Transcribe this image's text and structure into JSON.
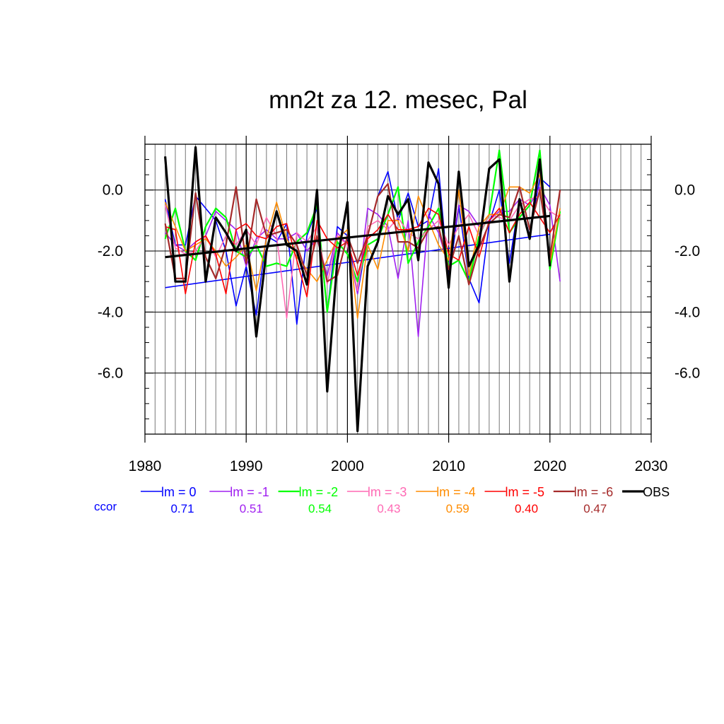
{
  "chart_data": {
    "type": "line",
    "title": "mn2t za 12. mesec, Pal",
    "xlim": [
      1980,
      2030
    ],
    "ylim": [
      -8.0,
      1.5
    ],
    "x_ticks": [
      "1980",
      "1990",
      "2000",
      "2010",
      "2020",
      "2030"
    ],
    "y_ticks": [
      "0.0",
      "-2.0",
      "-4.0",
      "-6.0"
    ],
    "y_tick_values": [
      0.0,
      -2.0,
      -4.0,
      -6.0
    ],
    "x_tick_values": [
      1980,
      1990,
      2000,
      2010,
      2020,
      2030
    ],
    "grid": "vertical yearly lines, horizontal at labeled ticks",
    "legend_placement": "bottom",
    "ccor_label": "ccor",
    "series": [
      {
        "name": "lm = 0",
        "color": "#0000ff",
        "width": 1.6,
        "ccor": "0.71",
        "x_start": 1982,
        "values": [
          -0.3,
          -1.8,
          -1.8,
          -0.2,
          -0.6,
          -1.0,
          -2.0,
          -3.8,
          -2.5,
          -4.1,
          -1.5,
          -1.7,
          -1.1,
          -4.4,
          -1.5,
          -0.6,
          -4.0,
          -1.2,
          -1.5,
          -3.4,
          -1.5,
          -0.2,
          0.6,
          -1.0,
          -0.1,
          -1.2,
          -1.0,
          0.7,
          -3.0,
          -0.5,
          -2.9,
          -3.7,
          -1.1,
          0.0,
          -2.4,
          -0.3,
          -1.5,
          0.4,
          0.1
        ],
        "trend": [
          [
            1982,
            -3.2
          ],
          [
            2020,
            -1.45
          ]
        ]
      },
      {
        "name": "lm = -1",
        "color": "#a020f0",
        "width": 1.6,
        "ccor": "0.51",
        "x_start": 1982,
        "values": [
          -1.4,
          -1.8,
          -2.0,
          -1.7,
          -1.5,
          -0.7,
          -1.0,
          -1.3,
          -2.5,
          -1.6,
          -1.3,
          -1.6,
          -1.6,
          -1.4,
          -2.0,
          -1.6,
          -2.8,
          -1.4,
          -1.8,
          -3.4,
          -0.6,
          -0.8,
          -1.2,
          -2.9,
          -1.0,
          -4.8,
          -0.8,
          -1.4,
          -2.5,
          -0.5,
          -0.7,
          -1.2,
          -1.0,
          -0.7,
          -0.7,
          -0.3,
          -0.5,
          0.1,
          -0.5,
          -3.0
        ]
      },
      {
        "name": "lm = -2",
        "color": "#00ff00",
        "width": 2.2,
        "ccor": "0.54",
        "x_start": 1982,
        "values": [
          -1.6,
          -0.6,
          -2.0,
          -2.3,
          -1.2,
          -0.6,
          -0.9,
          -2.0,
          -2.2,
          -1.8,
          -2.5,
          -2.4,
          -2.5,
          -1.7,
          -1.4,
          -0.5,
          -4.0,
          -1.7,
          -2.1,
          -3.0,
          -1.8,
          -1.6,
          -0.8,
          0.1,
          -2.4,
          -1.7,
          -1.2,
          -0.6,
          -2.5,
          -2.3,
          -3.0,
          -1.5,
          -0.8,
          1.3,
          -1.4,
          -0.9,
          -0.5,
          1.3,
          -2.6,
          -0.7
        ]
      },
      {
        "name": "lm = -3",
        "color": "#ff69b4",
        "width": 1.6,
        "ccor": "0.43",
        "x_start": 1982,
        "values": [
          -0.5,
          -1.9,
          -2.1,
          -2.0,
          -1.5,
          -2.2,
          -1.5,
          -1.8,
          -1.3,
          -1.8,
          -0.9,
          -1.5,
          -4.2,
          -1.4,
          -1.7,
          -1.2,
          -3.1,
          -1.5,
          -1.8,
          -3.3,
          -1.2,
          -1.0,
          -1.3,
          -0.9,
          -1.4,
          -1.6,
          -1.3,
          -1.0,
          -1.8,
          -1.2,
          -0.8,
          -1.5,
          -0.8,
          -0.9,
          -1.0,
          -0.5,
          -0.3,
          -0.2,
          -0.7,
          -0.9
        ]
      },
      {
        "name": "lm = -4",
        "color": "#ff8c00",
        "width": 1.6,
        "ccor": "0.59",
        "x_start": 1982,
        "values": [
          -0.4,
          -1.2,
          -2.0,
          -1.8,
          -1.6,
          -2.0,
          -2.5,
          -2.2,
          -1.8,
          -3.3,
          -1.6,
          -0.4,
          -1.6,
          -2.2,
          -2.6,
          -3.0,
          -2.3,
          -1.6,
          -1.3,
          -4.2,
          -1.8,
          -2.6,
          -1.0,
          -1.0,
          -2.0,
          -0.2,
          -1.0,
          -1.8,
          -2.3,
          0.0,
          -2.8,
          -1.2,
          -0.8,
          -0.8,
          0.1,
          0.1,
          -0.1,
          0.5,
          -2.4,
          -0.6
        ]
      },
      {
        "name": "lm = -5",
        "color": "#ff0000",
        "width": 1.6,
        "ccor": "0.40",
        "x_start": 1982,
        "values": [
          -1.2,
          -1.3,
          -3.4,
          -1.7,
          -1.5,
          -2.1,
          -3.4,
          -1.3,
          -1.1,
          -1.5,
          -1.6,
          -1.2,
          -1.1,
          -2.3,
          -3.5,
          -1.0,
          -1.6,
          -1.9,
          -1.7,
          -2.8,
          -1.6,
          -1.3,
          -0.8,
          -1.3,
          -1.3,
          -1.2,
          -0.6,
          -0.8,
          -2.1,
          -2.3,
          -1.2,
          -2.2,
          -1.0,
          -0.6,
          -1.4,
          -0.8,
          -0.4,
          -0.9,
          -1.4,
          -0.8
        ]
      },
      {
        "name": "lm = -6",
        "color": "#a52a2a",
        "width": 2.2,
        "ccor": "0.47",
        "x_start": 1982,
        "values": [
          -1.1,
          -2.9,
          -2.9,
          -0.1,
          -2.2,
          -2.9,
          -1.8,
          0.1,
          -2.4,
          -0.3,
          -1.5,
          -1.4,
          -1.3,
          -1.8,
          -2.8,
          -1.5,
          -3.0,
          -2.8,
          -1.5,
          -2.4,
          -1.5,
          -0.2,
          0.2,
          -1.7,
          -1.7,
          -1.9,
          -1.3,
          -1.2,
          -2.6,
          -1.5,
          -3.1,
          -1.9,
          -1.1,
          -0.8,
          -0.9,
          0.1,
          -1.3,
          0.0,
          -2.2,
          0.0
        ]
      },
      {
        "name": "OBS",
        "color": "#000000",
        "width": 3.2,
        "ccor": "",
        "x_start": 1982,
        "values": [
          1.1,
          -3.0,
          -3.0,
          1.4,
          -3.0,
          -0.9,
          -1.4,
          -2.0,
          -1.3,
          -4.8,
          -2.0,
          -0.7,
          -1.8,
          -2.0,
          -3.1,
          0.0,
          -6.6,
          -2.3,
          -0.4,
          -7.9,
          -2.5,
          -1.7,
          -0.2,
          -0.8,
          -0.3,
          -2.3,
          0.9,
          0.2,
          -3.2,
          0.6,
          -2.5,
          -1.8,
          0.7,
          1.0,
          -3.0,
          -0.3,
          -1.6,
          1.0,
          -2.5
        ],
        "trend": [
          [
            1982,
            -2.2
          ],
          [
            2020,
            -0.85
          ]
        ]
      }
    ]
  }
}
